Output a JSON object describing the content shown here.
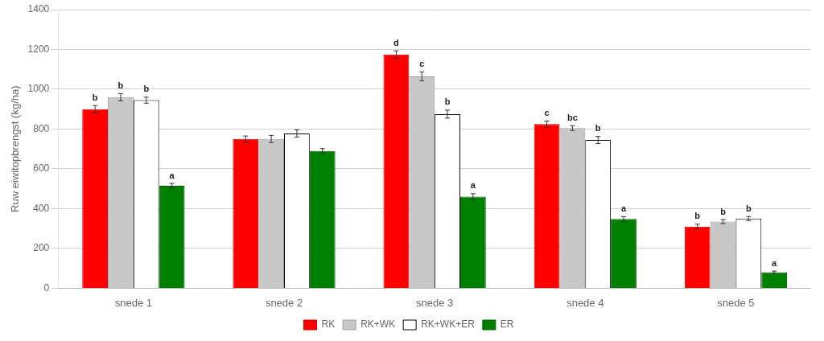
{
  "chart_data": {
    "type": "bar",
    "categories": [
      "snede 1",
      "snede 2",
      "snede 3",
      "snede 4",
      "snede 5"
    ],
    "series": [
      {
        "name": "RK",
        "color": "#ff0000",
        "edgecolor": "#cc0000",
        "values": [
          900,
          750,
          1175,
          825,
          310
        ],
        "errors": [
          18,
          15,
          18,
          15,
          12
        ],
        "letters": [
          "b",
          null,
          "d",
          "c",
          "b"
        ]
      },
      {
        "name": "RK+WK",
        "color": "#c8c8c8",
        "edgecolor": "#a0a0a0",
        "values": [
          960,
          750,
          1065,
          805,
          335
        ],
        "errors": [
          18,
          18,
          22,
          12,
          10
        ],
        "letters": [
          "b",
          null,
          "c",
          "bc",
          "b"
        ]
      },
      {
        "name": "RK+WK+ER",
        "color": "#ffffff",
        "edgecolor": "#000000",
        "values": [
          945,
          778,
          875,
          745,
          350
        ],
        "errors": [
          15,
          18,
          20,
          18,
          10
        ],
        "letters": [
          "b",
          null,
          "b",
          "b",
          "b"
        ]
      },
      {
        "name": "ER",
        "color": "#008000",
        "edgecolor": "#006000",
        "values": [
          515,
          690,
          460,
          348,
          80
        ],
        "errors": [
          12,
          12,
          15,
          12,
          6
        ],
        "letters": [
          "a",
          null,
          "a",
          "a",
          "a"
        ]
      }
    ],
    "ylabel": "Ruw eiwitopbrengst (kg/ha)",
    "ylim": [
      0,
      1400
    ],
    "yticks": [
      0,
      200,
      400,
      600,
      800,
      1000,
      1200,
      1400
    ],
    "grid": true,
    "legend": "bottom"
  }
}
